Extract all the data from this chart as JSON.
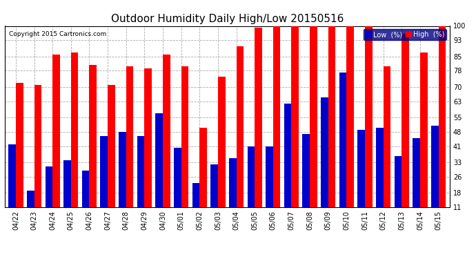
{
  "title": "Outdoor Humidity Daily High/Low 20150516",
  "copyright": "Copyright 2015 Cartronics.com",
  "legend_low": "Low  (%)",
  "legend_high": "High  (%)",
  "categories": [
    "04/22",
    "04/23",
    "04/24",
    "04/25",
    "04/26",
    "04/27",
    "04/28",
    "04/29",
    "04/30",
    "05/01",
    "05/02",
    "05/03",
    "05/04",
    "05/05",
    "05/06",
    "05/07",
    "05/08",
    "05/09",
    "05/10",
    "05/11",
    "05/12",
    "05/13",
    "05/14",
    "05/15"
  ],
  "high_values": [
    72,
    71,
    86,
    87,
    81,
    71,
    80,
    79,
    86,
    80,
    50,
    75,
    90,
    99,
    100,
    100,
    100,
    100,
    100,
    100,
    80,
    96,
    87,
    100
  ],
  "low_values": [
    42,
    19,
    31,
    34,
    29,
    46,
    48,
    46,
    57,
    40,
    23,
    32,
    35,
    41,
    41,
    62,
    47,
    65,
    77,
    49,
    50,
    36,
    45,
    51
  ],
  "ylim_min": 11,
  "ylim_max": 100,
  "yticks": [
    11,
    18,
    26,
    33,
    41,
    48,
    55,
    63,
    70,
    78,
    85,
    93,
    100
  ],
  "bar_color_high": "#ff0000",
  "bar_color_low": "#0000cc",
  "background_color": "#ffffff",
  "plot_bg_color": "#ffffff",
  "grid_color": "#aaaaaa",
  "title_fontsize": 11,
  "tick_fontsize": 7,
  "legend_fontsize": 7
}
